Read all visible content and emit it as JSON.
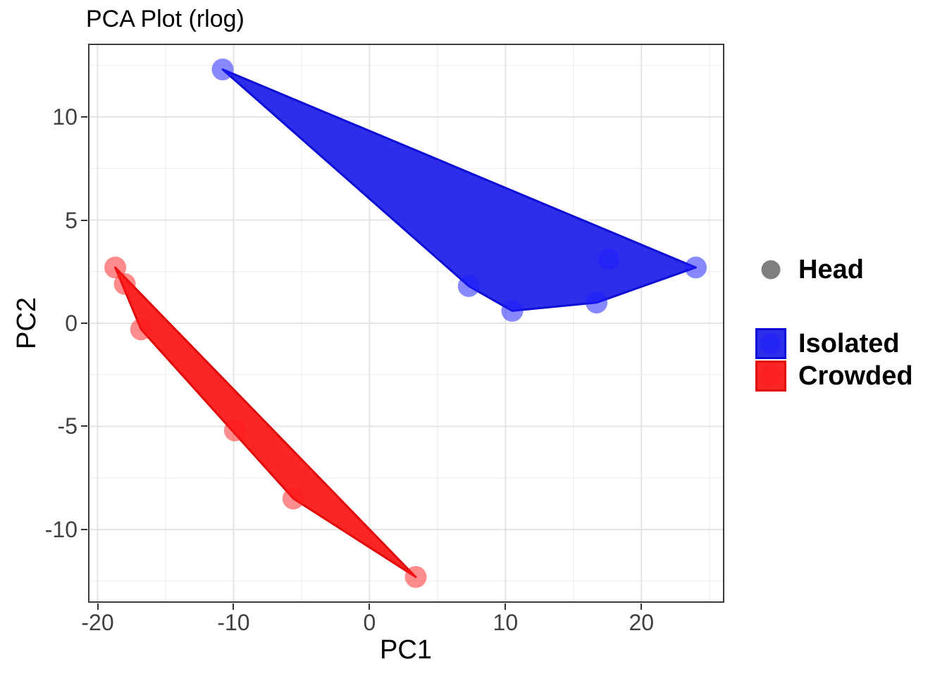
{
  "chart_data": {
    "type": "scatter",
    "title": "PCA Plot (rlog)",
    "xlabel": "PC1",
    "ylabel": "PC2",
    "xlim": [
      -20.7,
      26.1
    ],
    "ylim": [
      -13.55,
      13.55
    ],
    "xticks": [
      -20,
      -10,
      0,
      10,
      20
    ],
    "yticks": [
      -10,
      -5,
      0,
      5,
      10
    ],
    "xticks_minor": [
      -15,
      -5,
      5,
      15,
      25
    ],
    "yticks_minor": [
      -12.5,
      -7.5,
      -2.5,
      2.5,
      7.5,
      12.5
    ],
    "grid": "major+minor",
    "legend_position": "right",
    "shape_legend": {
      "label": "Head",
      "shape": "circle",
      "color": "#7F7F7F"
    },
    "series": [
      {
        "name": "Isolated",
        "base_color": "#0000FF",
        "hull_fill": "#1717E8",
        "hull_fill_opacity": 0.9,
        "hull_stroke": "#0D0DD6",
        "point_color": "rgba(26,26,255,0.52)",
        "points": [
          [
            -10.8,
            12.3
          ],
          [
            7.3,
            1.8
          ],
          [
            10.5,
            0.6
          ],
          [
            16.7,
            1.0
          ],
          [
            17.6,
            3.1
          ],
          [
            24.0,
            2.7
          ]
        ],
        "hull": [
          [
            -10.8,
            12.3
          ],
          [
            7.3,
            1.8
          ],
          [
            10.5,
            0.6
          ],
          [
            16.7,
            1.0
          ],
          [
            24.0,
            2.7
          ]
        ]
      },
      {
        "name": "Crowded",
        "base_color": "#FF0000",
        "hull_fill": "#FA1414",
        "hull_fill_opacity": 0.92,
        "hull_stroke": "#E00A0A",
        "point_color": "rgba(255,26,26,0.5)",
        "points": [
          [
            -18.7,
            2.7
          ],
          [
            -18.0,
            1.9
          ],
          [
            -16.8,
            -0.3
          ],
          [
            -9.9,
            -5.2
          ],
          [
            -5.6,
            -8.5
          ],
          [
            3.4,
            -12.3
          ]
        ],
        "hull": [
          [
            -18.7,
            2.7
          ],
          [
            -16.8,
            -0.3
          ],
          [
            -5.6,
            -8.5
          ],
          [
            3.4,
            -12.3
          ]
        ]
      }
    ],
    "style": {
      "grid_major_color": "#E4E4E4",
      "grid_minor_color": "#F1F1F1",
      "panel_border_color": "#3C3C3C",
      "tick_color": "#333333",
      "tick_label_color": "#404040",
      "point_radius": 15.5
    }
  }
}
